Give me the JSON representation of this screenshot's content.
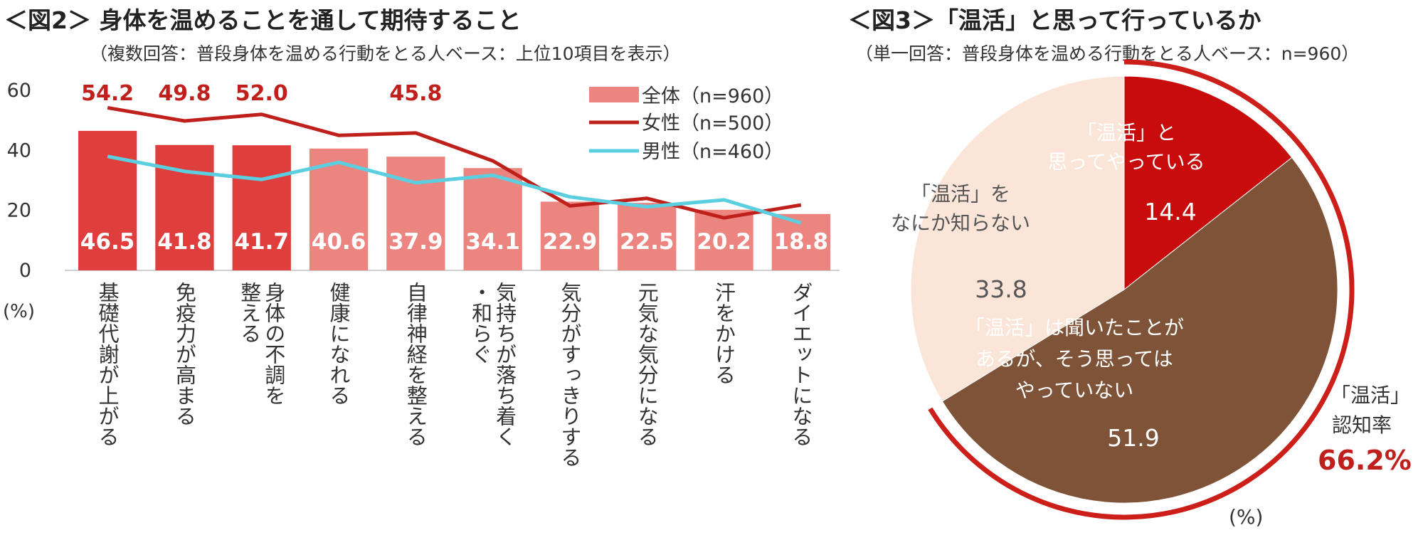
{
  "fig2": {
    "title": "＜図2＞ 身体を温めることを通して期待すること",
    "subtitle": "（複数回答：普段身体を温める行動をとる人ベース：上位10項目を表示）",
    "unit": "(%)",
    "legend": [
      {
        "label": "全体（n=960）",
        "kind": "bar",
        "color": "#e57373"
      },
      {
        "label": "女性（n=500）",
        "kind": "line",
        "color": "#c0201c"
      },
      {
        "label": "男性（n=460）",
        "kind": "line",
        "color": "#5bcfe0"
      }
    ]
  },
  "fig3": {
    "title": "＜図3＞「温活」と思って行っているか",
    "subtitle": "（単一回答：普段身体を温める行動をとる人ベース：n=960）",
    "unit": "(%)",
    "awareness_label_1": "「温活」",
    "awareness_label_2": "認知率",
    "awareness_value": "66.2%",
    "colors": {
      "accent": "#c0201c",
      "ring": "#cc1f1a"
    }
  },
  "chart_data": [
    {
      "type": "bar",
      "title": "＜図2＞ 身体を温めることを通して期待すること",
      "ylabel": "(%)",
      "ylim": [
        0,
        60
      ],
      "yticks": [
        0,
        20,
        40,
        60
      ],
      "grid": false,
      "legend_position": "top-right",
      "categories": [
        "基礎代謝が上がる",
        "免疫力が高まる",
        "身体の不調を整える",
        "健康になれる",
        "自律神経を整える",
        "気持ちが落ち着く・和らぐ",
        "気分がすっきりする",
        "元気な気分になる",
        "汗をかける",
        "ダイエットになる"
      ],
      "category_columns": [
        [
          "基礎代謝が上がる"
        ],
        [
          "免疫力が高まる"
        ],
        [
          "整える",
          "身体の不調を"
        ],
        [
          "健康になれる"
        ],
        [
          "自律神経を整える"
        ],
        [
          "・和らぐ",
          "気持ちが落ち着く"
        ],
        [
          "気分がすっきりする"
        ],
        [
          "元気な気分になる"
        ],
        [
          "汗をかける"
        ],
        [
          "ダイエットになる"
        ]
      ],
      "series": [
        {
          "name": "全体（n=960）",
          "type": "bar",
          "values": [
            46.5,
            41.8,
            41.7,
            40.6,
            37.9,
            34.1,
            22.9,
            22.5,
            20.2,
            18.8
          ],
          "labels": [
            "46.5",
            "41.8",
            "41.7",
            "40.6",
            "37.9",
            "34.1",
            "22.9",
            "22.5",
            "20.2",
            "18.8"
          ],
          "highlighted": [
            true,
            true,
            true,
            false,
            false,
            false,
            false,
            false,
            false,
            false
          ],
          "color_highlight": "#e03e3c",
          "color_normal": "#ec8580"
        },
        {
          "name": "女性（n=500）",
          "type": "line",
          "values": [
            54.2,
            49.8,
            52.0,
            45.0,
            45.8,
            36.5,
            21.5,
            24.0,
            17.5,
            21.8
          ],
          "shown_labels": [
            "54.2",
            "49.8",
            "52.0",
            null,
            "45.8",
            null,
            null,
            null,
            null,
            null
          ],
          "color": "#c0201c"
        },
        {
          "name": "男性（n=460）",
          "type": "line",
          "values": [
            38.0,
            33.0,
            30.3,
            36.0,
            29.2,
            31.7,
            24.5,
            21.2,
            23.5,
            15.8
          ],
          "color": "#5bcfe0"
        }
      ]
    },
    {
      "type": "pie",
      "title": "＜図3＞「温活」と思って行っているか",
      "unit": "(%)",
      "slices": [
        {
          "label_lines": [
            "「温活」と",
            "思ってやっている"
          ],
          "value": 14.4,
          "value_label": "14.4",
          "color": "#c80b0b",
          "text_color": "#ffffff"
        },
        {
          "label_lines": [
            "「温活」は聞いたことが",
            "あるが、そう思っては",
            "やっていない"
          ],
          "value": 51.9,
          "value_label": "51.9",
          "color": "#7e5337",
          "text_color": "#ffffff"
        },
        {
          "label_lines": [
            "「温活」を",
            "なにか知らない"
          ],
          "value": 33.8,
          "value_label": "33.8",
          "color": "#fbe5d9",
          "text_color": "#555555"
        }
      ],
      "awareness": {
        "label": "「温活」認知率",
        "value": 66.2
      }
    }
  ]
}
